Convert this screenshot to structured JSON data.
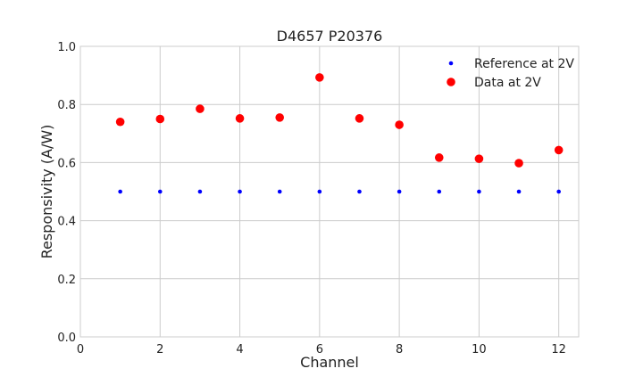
{
  "chart_data": {
    "type": "scatter",
    "title": "D4657 P20376",
    "xlabel": "Channel",
    "ylabel": "Responsivity (A/W)",
    "xlim": [
      0,
      12.5
    ],
    "ylim": [
      0.0,
      1.0
    ],
    "xticks": [
      0,
      2,
      4,
      6,
      8,
      10,
      12
    ],
    "yticks": [
      0.0,
      0.2,
      0.4,
      0.6,
      0.8,
      1.0
    ],
    "xtick_labels": [
      "0",
      "2",
      "4",
      "6",
      "8",
      "10",
      "12"
    ],
    "ytick_labels": [
      "0.0",
      "0.2",
      "0.4",
      "0.6",
      "0.8",
      "1.0"
    ],
    "grid": true,
    "legend_position": "top-right",
    "series": [
      {
        "name": "Reference at 2V",
        "color": "#0000ff",
        "marker": "small-dot",
        "x": [
          1,
          2,
          3,
          4,
          5,
          6,
          7,
          8,
          9,
          10,
          11,
          12
        ],
        "y": [
          0.5,
          0.5,
          0.5,
          0.5,
          0.5,
          0.5,
          0.5,
          0.5,
          0.5,
          0.5,
          0.5,
          0.5
        ]
      },
      {
        "name": "Data at 2V",
        "color": "#ff0000",
        "marker": "large-dot",
        "x": [
          1,
          2,
          3,
          4,
          5,
          6,
          7,
          8,
          9,
          10,
          11,
          12
        ],
        "y": [
          0.74,
          0.75,
          0.785,
          0.752,
          0.755,
          0.893,
          0.752,
          0.73,
          0.617,
          0.613,
          0.598,
          0.643
        ]
      }
    ]
  }
}
